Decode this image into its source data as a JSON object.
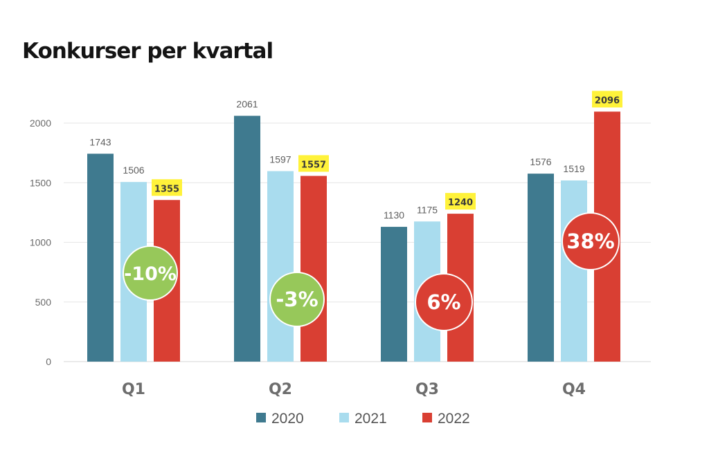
{
  "title": "Konkurser per kvartal",
  "colors": {
    "2020": "#3f7a8f",
    "2021": "#a9dcee",
    "2022": "#d93f33",
    "highlight": "#fff23a",
    "bubble_negative": "#97c85a",
    "bubble_positive": "#d93f33"
  },
  "chart_data": {
    "type": "bar",
    "title": "Konkurser per kvartal",
    "categories": [
      "Q1",
      "Q2",
      "Q3",
      "Q4"
    ],
    "series": [
      {
        "name": "2020",
        "values": [
          1743,
          2061,
          1130,
          1576
        ]
      },
      {
        "name": "2021",
        "values": [
          1506,
          1597,
          1175,
          1519
        ]
      },
      {
        "name": "2022",
        "values": [
          1355,
          1557,
          1240,
          2096
        ]
      }
    ],
    "highlighted_series": "2022",
    "change_annotations": [
      "-10%",
      "-3%",
      "6%",
      "38%"
    ],
    "yticks": [
      0,
      500,
      1000,
      1500,
      2000
    ],
    "ylim": [
      0,
      2000
    ],
    "xlabel": "",
    "ylabel": "",
    "grid": true,
    "legend_position": "bottom"
  }
}
